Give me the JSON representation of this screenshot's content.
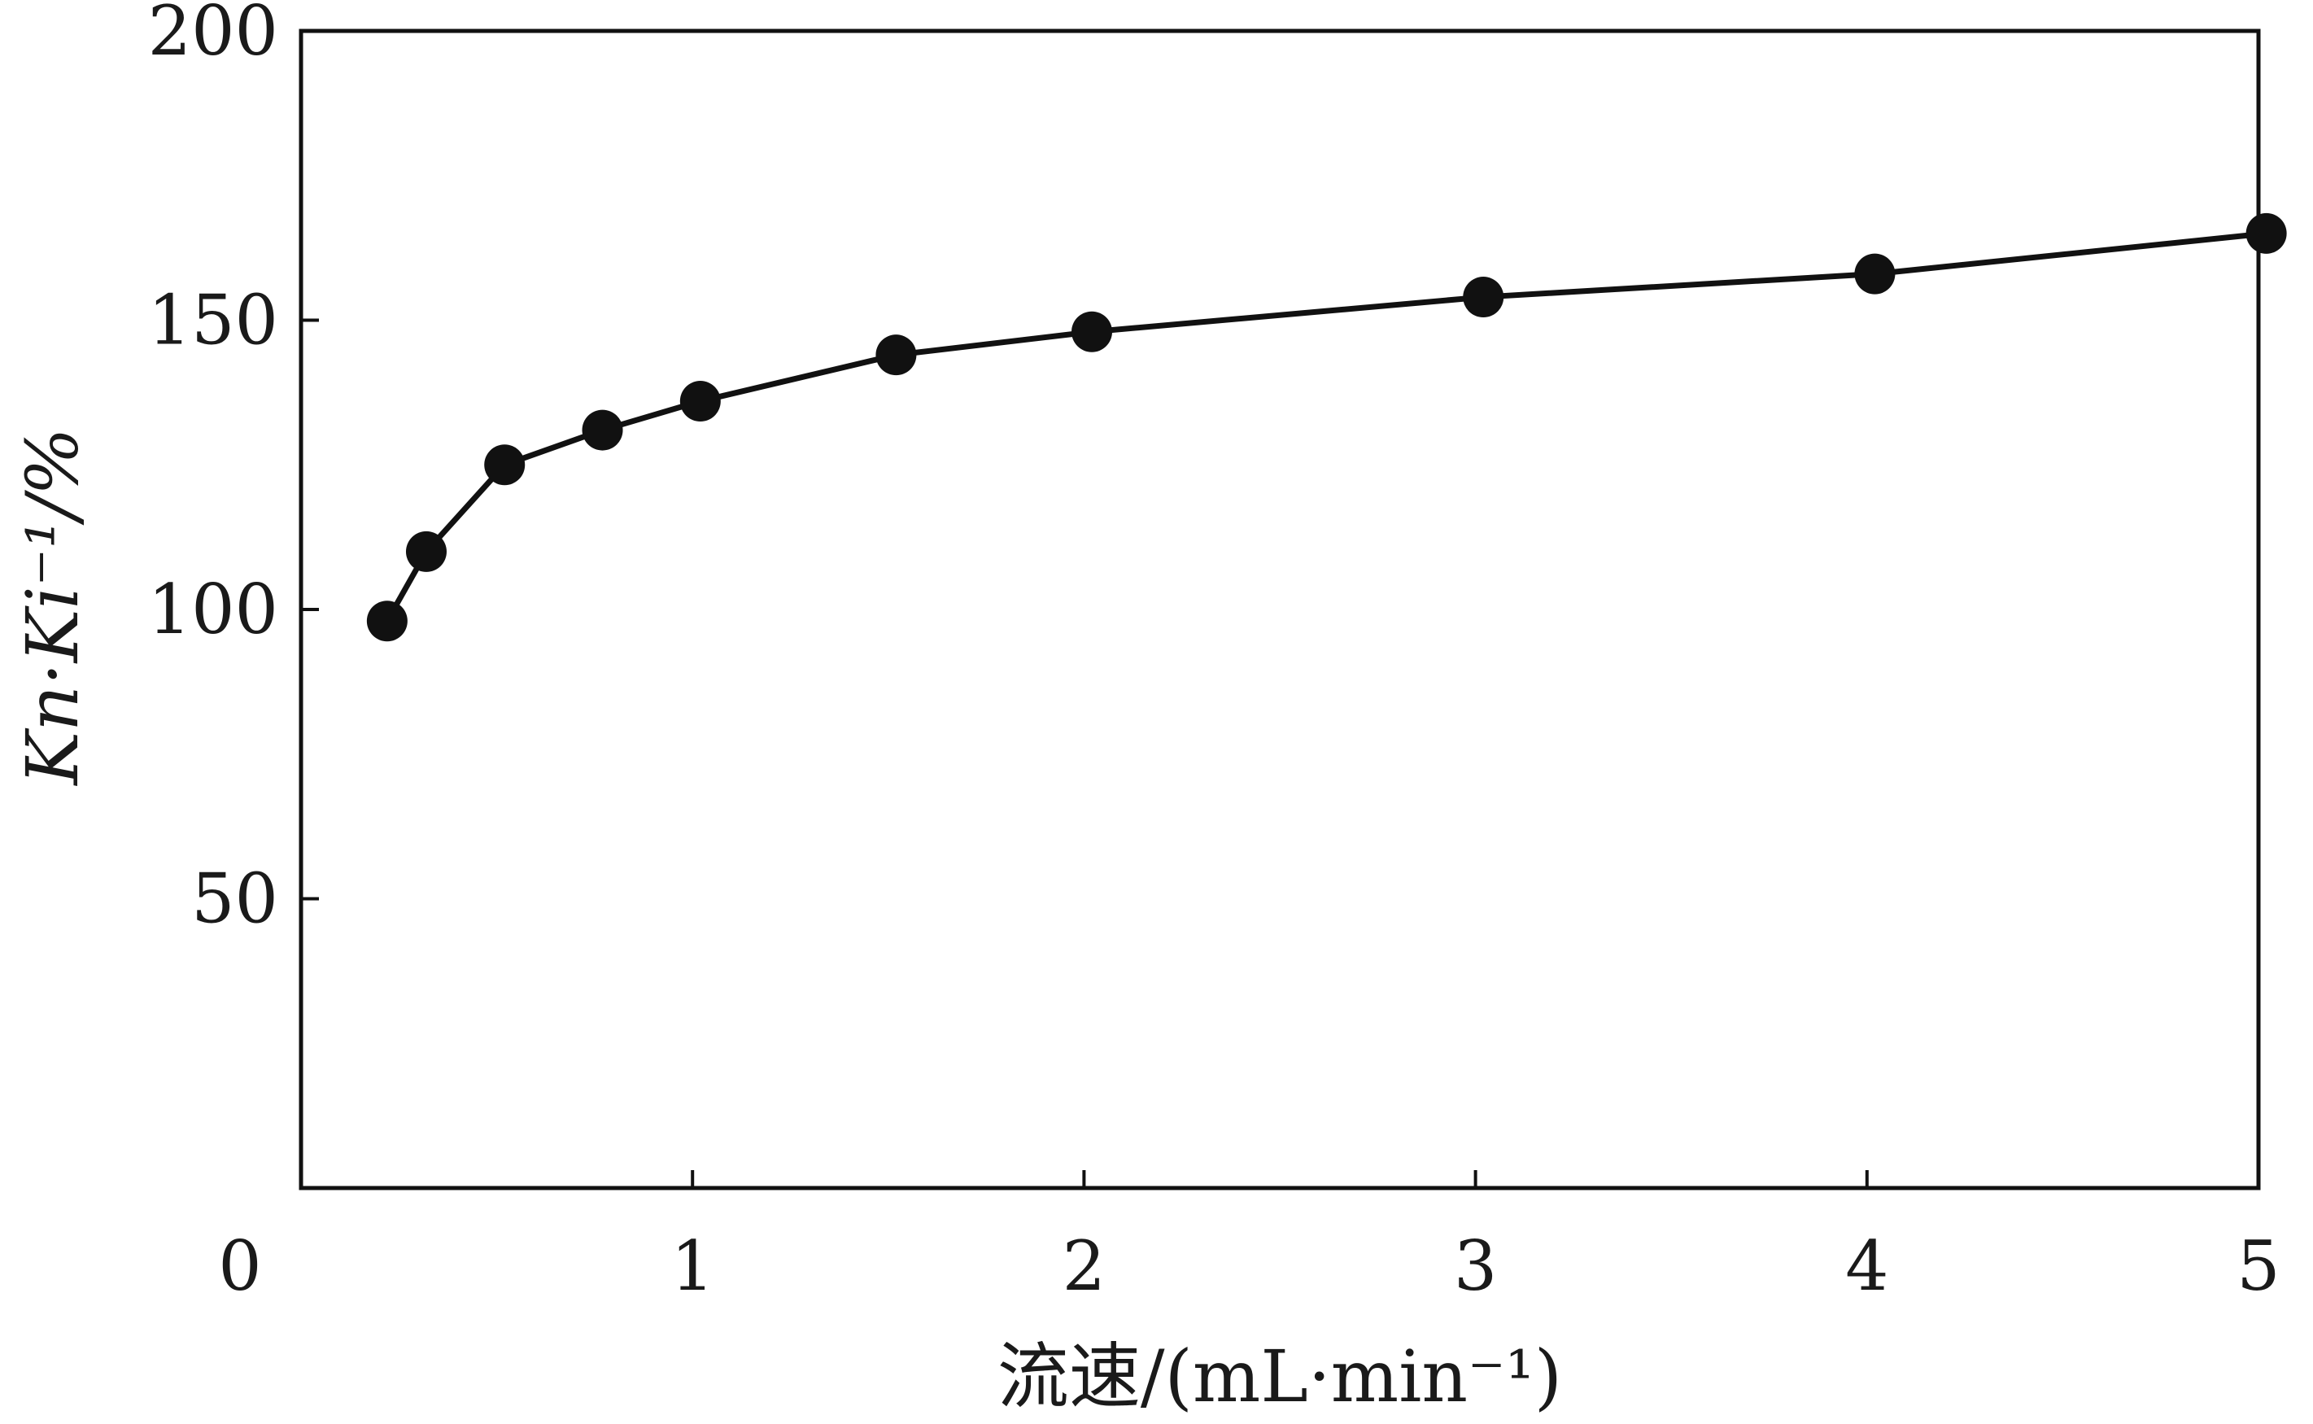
{
  "chart_data": {
    "type": "line",
    "xlabel": "流速/(mL·min⁻¹)",
    "ylabel": "Kn·Ki⁻¹/%",
    "xlim": [
      0,
      5
    ],
    "ylim": [
      0,
      200
    ],
    "x_ticks": [
      0,
      1,
      2,
      3,
      4,
      5
    ],
    "y_ticks": [
      50,
      100,
      150,
      200
    ],
    "grid": false,
    "legend": "none",
    "series": [
      {
        "color": "#111111",
        "marker": "circle",
        "x": [
          0.22,
          0.32,
          0.52,
          0.77,
          1.02,
          1.52,
          2.02,
          3.02,
          4.02,
          5.02
        ],
        "y": [
          98,
          110,
          125,
          131,
          136,
          144,
          148,
          154,
          158,
          165
        ]
      }
    ]
  }
}
